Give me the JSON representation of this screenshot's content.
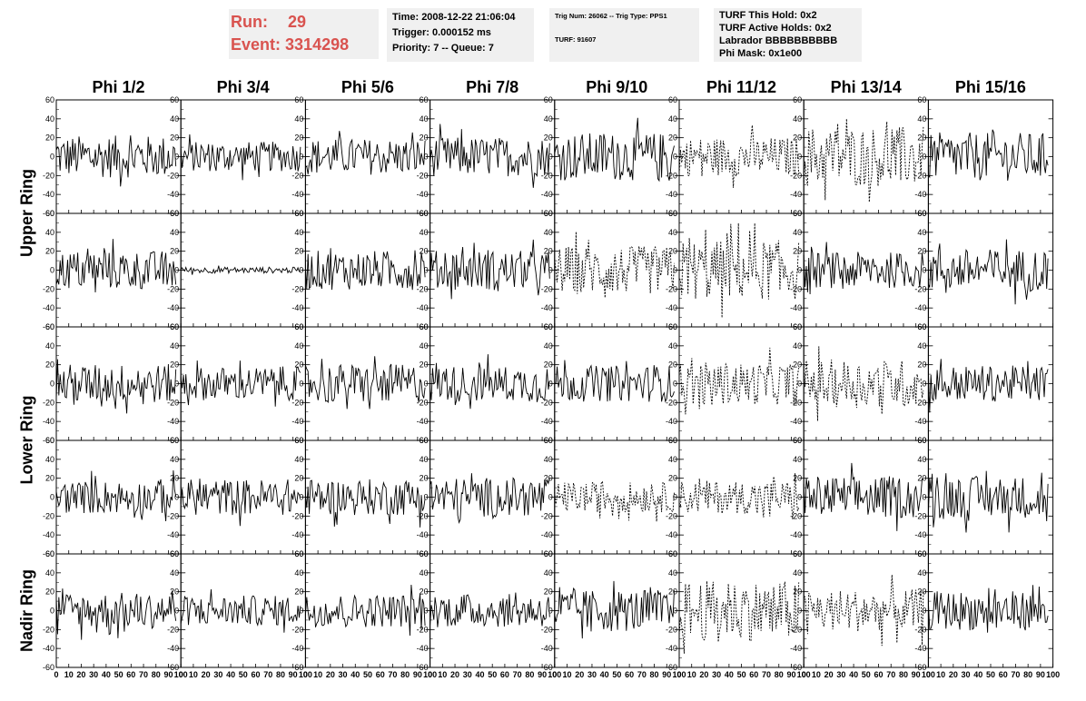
{
  "header": {
    "run_label": "Run:",
    "run_value": "29",
    "event_label": "Event:",
    "event_value": "3314298",
    "time": "Time: 2008-12-22 21:06:04",
    "trigger": "Trigger: 0.000152 ms",
    "priority": "Priority: 7 -- Queue: 7",
    "trig_num": "Trig Num: 26062 -- Trig Type: PPS1",
    "turf": "TURF: 91607",
    "turf_hold": "TURF This Hold: 0x2",
    "turf_active": "TURF Active Holds: 0x2",
    "labrador": "Labrador BBBBBBBBBB",
    "phi_mask": "Phi Mask: 0x1e00"
  },
  "chart_data": {
    "type": "line",
    "columns": [
      "Phi 1/2",
      "Phi 3/4",
      "Phi 5/6",
      "Phi 7/8",
      "Phi 9/10",
      "Phi 11/12",
      "Phi 13/14",
      "Phi 15/16"
    ],
    "row_labels": [
      {
        "label": "Upper Ring",
        "rows": [
          0,
          1
        ]
      },
      {
        "label": "Lower Ring",
        "rows": [
          2,
          3
        ]
      },
      {
        "label": "Nadir Ring",
        "rows": [
          4
        ]
      }
    ],
    "xlim": [
      0,
      100
    ],
    "ylim": [
      -60,
      60
    ],
    "x_ticks": [
      0,
      10,
      20,
      30,
      40,
      50,
      60,
      70,
      80,
      90,
      100
    ],
    "y_ticks": [
      -60,
      -40,
      -20,
      0,
      20,
      40,
      60
    ],
    "samples": 96,
    "amplitudes": [
      [
        14,
        10,
        12,
        13,
        16,
        13,
        20,
        16
      ],
      [
        13,
        2,
        13,
        13,
        16,
        20,
        12,
        14
      ],
      [
        13,
        11,
        13,
        12,
        12,
        14,
        16,
        12
      ],
      [
        11,
        12,
        12,
        13,
        10,
        11,
        14,
        14
      ],
      [
        12,
        10,
        11,
        11,
        14,
        20,
        14,
        13
      ]
    ],
    "dashed": [
      [
        false,
        false,
        false,
        false,
        false,
        true,
        true,
        false
      ],
      [
        false,
        false,
        false,
        false,
        true,
        true,
        false,
        false
      ],
      [
        false,
        false,
        false,
        false,
        false,
        true,
        true,
        false
      ],
      [
        false,
        false,
        false,
        false,
        true,
        true,
        false,
        false
      ],
      [
        false,
        false,
        false,
        false,
        false,
        true,
        true,
        false
      ]
    ]
  }
}
